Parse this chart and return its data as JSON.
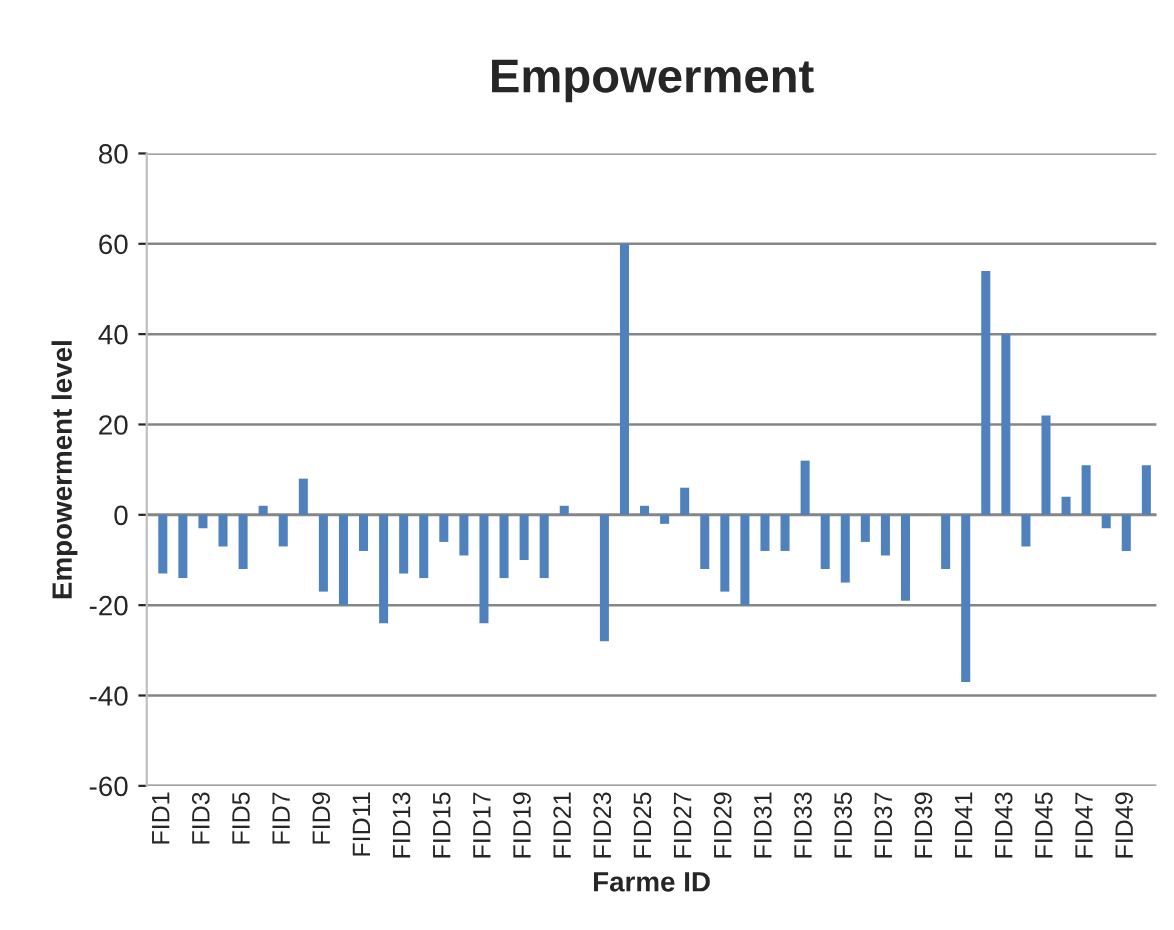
{
  "chart_data": {
    "type": "bar",
    "title": "Empowerment",
    "xlabel": "Farme ID",
    "ylabel": "Empowerment level",
    "categories": [
      "FID1",
      null,
      "FID3",
      null,
      "FID5",
      null,
      "FID7",
      null,
      "FID9",
      null,
      "FID11",
      null,
      "FID13",
      null,
      "FID15",
      null,
      "FID17",
      null,
      "FID19",
      null,
      "FID21",
      null,
      "FID23",
      null,
      "FID25",
      null,
      "FID27",
      null,
      "FID29",
      null,
      "FID31",
      null,
      "FID33",
      null,
      "FID35",
      null,
      "FID37",
      null,
      "FID39",
      null,
      "FID41",
      null,
      "FID43",
      null,
      "FID45",
      null,
      "FID47",
      null,
      "FID49",
      null
    ],
    "values": [
      -13,
      -14,
      -3,
      -7,
      -12,
      2,
      -7,
      8,
      -17,
      -20,
      -8,
      -24,
      -13,
      -14,
      -6,
      -9,
      -24,
      -14,
      -10,
      -14,
      2,
      0,
      -28,
      60,
      2,
      -2,
      6,
      -12,
      -17,
      -20,
      -8,
      -8,
      12,
      -12,
      -15,
      -6,
      -9,
      -19,
      0,
      -12,
      -37,
      54,
      40,
      -7,
      22,
      4,
      11,
      -3,
      -8,
      11
    ],
    "color": "#4f81bd",
    "ylim": [
      -60,
      80
    ],
    "yticks": [
      -60,
      -40,
      -20,
      0,
      20,
      40,
      60,
      80
    ],
    "grid": "y"
  }
}
